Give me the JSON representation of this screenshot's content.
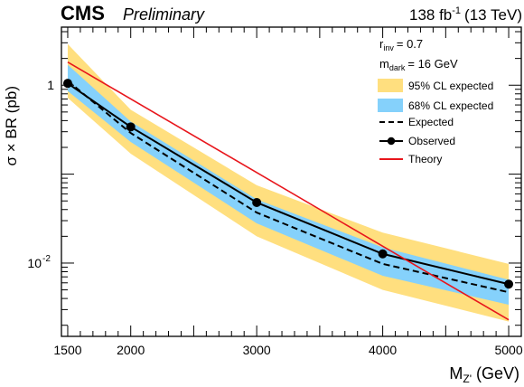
{
  "header": {
    "experiment": "CMS",
    "status": "Preliminary",
    "lumi_value": "138 fb",
    "lumi_exp": "-1",
    "energy": "(13 TeV)"
  },
  "annotations": {
    "r_sym": "r",
    "r_sub": "inv",
    "r_val": "= 0.7",
    "m_sym": "m",
    "m_sub": "dark",
    "m_val": "= 16 GeV"
  },
  "chart_data": {
    "type": "line",
    "title": "",
    "xlabel": "M_Z' (GeV)",
    "ylabel": "σ × BR (pb)",
    "x_scale": "linear",
    "y_scale": "log",
    "xlim": [
      1450,
      5100
    ],
    "ylim": [
      0.0015,
      4.5
    ],
    "x_ticks": [
      1500,
      2000,
      3000,
      4000,
      5000
    ],
    "x_tick_labels": [
      "1500",
      "2000",
      "3000",
      "4000",
      "5000"
    ],
    "y_ticks": [
      1,
      0.01
    ],
    "y_tick_labels": [
      "1",
      "10",
      "-2"
    ],
    "x": [
      1500,
      2000,
      3000,
      4000,
      5000
    ],
    "series": [
      {
        "name": "95% CL expected",
        "kind": "band",
        "color": "#ffdf7f",
        "low": [
          0.72,
          0.17,
          0.02,
          0.005,
          0.0022
        ],
        "high": [
          2.9,
          0.53,
          0.075,
          0.022,
          0.0098
        ]
      },
      {
        "name": "68% CL expected",
        "kind": "band",
        "color": "#85d1fb",
        "low": [
          0.86,
          0.23,
          0.028,
          0.0072,
          0.0034
        ],
        "high": [
          1.7,
          0.39,
          0.052,
          0.015,
          0.0065
        ]
      },
      {
        "name": "Expected",
        "kind": "line",
        "style": "dashed",
        "color": "#000000",
        "values": [
          1.12,
          0.29,
          0.037,
          0.0098,
          0.0047
        ]
      },
      {
        "name": "Observed",
        "kind": "line",
        "style": "solid-markers",
        "color": "#000000",
        "values": [
          1.05,
          0.34,
          0.048,
          0.0127,
          0.0058
        ]
      },
      {
        "name": "Theory",
        "kind": "line",
        "style": "solid",
        "color": "#e8161c",
        "x": [
          1500,
          5000
        ],
        "values": [
          1.82,
          0.0023
        ]
      }
    ],
    "legend": {
      "placement": "top-right",
      "entries": [
        "95% CL expected",
        "68% CL expected",
        "Expected",
        "Observed",
        "Theory"
      ]
    }
  }
}
